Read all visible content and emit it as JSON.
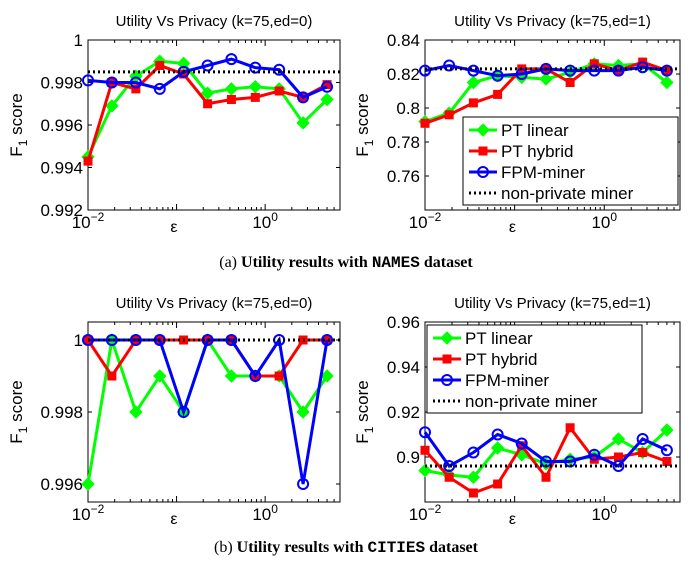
{
  "captions": {
    "a_prefix": "(a)",
    "a_text": "Utility results with",
    "a_dataset": "NAMES",
    "a_suffix": "dataset",
    "b_prefix": "(b)",
    "b_text": "Utility results with",
    "b_dataset": "CITIES",
    "b_suffix": "dataset"
  },
  "legend_entries": [
    {
      "name": "PT linear",
      "color": "#00ff00",
      "marker": "diamond",
      "line": "solid"
    },
    {
      "name": "PT hybrid",
      "color": "#ff0000",
      "marker": "square",
      "line": "solid"
    },
    {
      "name": "FPM-miner",
      "color": "#0000ff",
      "marker": "circle",
      "line": "solid"
    },
    {
      "name": "non-private miner",
      "color": "#000000",
      "marker": "none",
      "line": "dotted"
    }
  ],
  "chart_data": [
    {
      "type": "line",
      "title": "Utility Vs Privacy (k=75,ed=0)",
      "xlabel": "ε",
      "ylabel_main": "F",
      "ylabel_sub": "1",
      "ylabel_rest": " score",
      "xscale": "log",
      "xlim": [
        0.01,
        7
      ],
      "ylim": [
        0.992,
        1
      ],
      "yticks": [
        0.992,
        0.994,
        0.996,
        0.998,
        1
      ],
      "ytick_labels": [
        "0.992",
        "0.994",
        "0.996",
        "0.998",
        "1"
      ],
      "xticks": [
        0.01,
        1
      ],
      "xtick_base": "10",
      "xtick_exps": [
        "−2",
        "0"
      ],
      "legend": "none",
      "x": [
        0.01,
        0.0186,
        0.0347,
        0.0646,
        0.12,
        0.224,
        0.416,
        0.774,
        1.44,
        2.68,
        5
      ],
      "series": [
        {
          "name": "PT linear",
          "values": [
            0.9945,
            0.9969,
            0.9983,
            0.999,
            0.9989,
            0.9975,
            0.9977,
            0.9978,
            0.9977,
            0.9961,
            0.9972
          ]
        },
        {
          "name": "PT hybrid",
          "values": [
            0.9943,
            0.998,
            0.9977,
            0.9988,
            0.9984,
            0.997,
            0.9972,
            0.9973,
            0.9976,
            0.9973,
            0.9979
          ]
        },
        {
          "name": "FPM-miner",
          "values": [
            0.9981,
            0.998,
            0.998,
            0.9977,
            0.9985,
            0.9988,
            0.9991,
            0.9987,
            0.9986,
            0.9973,
            0.9978
          ]
        },
        {
          "name": "non-private miner",
          "constant": 0.9985
        }
      ]
    },
    {
      "type": "line",
      "title": "Utility Vs Privacy (k=75,ed=1)",
      "xlabel": "ε",
      "ylabel_main": "F",
      "ylabel_sub": "1",
      "ylabel_rest": " score",
      "xscale": "log",
      "xlim": [
        0.01,
        7
      ],
      "ylim": [
        0.74,
        0.84
      ],
      "yticks": [
        0.74,
        0.76,
        0.78,
        0.8,
        0.82,
        0.84
      ],
      "ytick_labels": [
        "",
        "0.76",
        "0.78",
        "0.8",
        "0.82",
        "0.84"
      ],
      "xticks": [
        0.01,
        1
      ],
      "xtick_base": "10",
      "xtick_exps": [
        "−2",
        "0"
      ],
      "legend": "bottom-right",
      "x": [
        0.01,
        0.0186,
        0.0347,
        0.0646,
        0.12,
        0.224,
        0.416,
        0.774,
        1.44,
        2.68,
        5
      ],
      "series": [
        {
          "name": "PT linear",
          "values": [
            0.792,
            0.797,
            0.815,
            0.819,
            0.818,
            0.817,
            0.821,
            0.826,
            0.825,
            0.826,
            0.815
          ]
        },
        {
          "name": "PT hybrid",
          "values": [
            0.791,
            0.796,
            0.803,
            0.808,
            0.823,
            0.823,
            0.815,
            0.826,
            0.822,
            0.827,
            0.822
          ]
        },
        {
          "name": "FPM-miner",
          "values": [
            0.822,
            0.825,
            0.822,
            0.819,
            0.82,
            0.823,
            0.822,
            0.822,
            0.822,
            0.824,
            0.822
          ]
        },
        {
          "name": "non-private miner",
          "constant": 0.823
        }
      ]
    },
    {
      "type": "line",
      "title": "Utility Vs Privacy (k=75,ed=0)",
      "xlabel": "ε",
      "ylabel_main": "F",
      "ylabel_sub": "1",
      "ylabel_rest": " score",
      "xscale": "log",
      "xlim": [
        0.01,
        7
      ],
      "ylim": [
        0.9955,
        1.0005
      ],
      "yticks": [
        0.996,
        0.998,
        1
      ],
      "ytick_labels": [
        "0.996",
        "0.998",
        "1"
      ],
      "xticks": [
        0.01,
        1
      ],
      "xtick_base": "10",
      "xtick_exps": [
        "−2",
        "0"
      ],
      "legend": "none",
      "x": [
        0.01,
        0.0186,
        0.0347,
        0.0646,
        0.12,
        0.224,
        0.416,
        0.774,
        1.44,
        2.68,
        5
      ],
      "series": [
        {
          "name": "PT linear",
          "values": [
            0.996,
            1.0,
            0.998,
            0.999,
            0.998,
            1.0,
            0.999,
            0.999,
            0.999,
            0.998,
            0.999
          ]
        },
        {
          "name": "PT hybrid",
          "values": [
            1.0,
            0.999,
            1.0,
            1.0,
            1.0,
            1.0,
            1.0,
            0.999,
            0.999,
            1.0,
            1.0
          ]
        },
        {
          "name": "FPM-miner",
          "values": [
            1.0,
            1.0,
            1.0,
            1.0,
            0.998,
            1.0,
            1.0,
            0.999,
            1.0,
            0.996,
            1.0
          ]
        },
        {
          "name": "non-private miner",
          "constant": 1.0
        }
      ]
    },
    {
      "type": "line",
      "title": "Utility Vs Privacy (k=75,ed=1)",
      "xlabel": "ε",
      "ylabel_main": "F",
      "ylabel_sub": "1",
      "ylabel_rest": " score",
      "xscale": "log",
      "xlim": [
        0.01,
        7
      ],
      "ylim": [
        0.88,
        0.96
      ],
      "yticks": [
        0.88,
        0.9,
        0.92,
        0.94,
        0.96
      ],
      "ytick_labels": [
        "",
        "0.9",
        "0.92",
        "0.94",
        "0.96"
      ],
      "xticks": [
        0.01,
        1
      ],
      "xtick_base": "10",
      "xtick_exps": [
        "−2",
        "0"
      ],
      "legend": "top-left",
      "x": [
        0.01,
        0.0186,
        0.0347,
        0.0646,
        0.12,
        0.224,
        0.416,
        0.774,
        1.44,
        2.68,
        5
      ],
      "series": [
        {
          "name": "PT linear",
          "values": [
            0.894,
            0.892,
            0.891,
            0.904,
            0.901,
            0.897,
            0.899,
            0.9,
            0.908,
            0.902,
            0.912
          ]
        },
        {
          "name": "PT hybrid",
          "values": [
            0.903,
            0.891,
            0.884,
            0.888,
            0.905,
            0.891,
            0.913,
            0.899,
            0.9,
            0.902,
            0.898
          ]
        },
        {
          "name": "FPM-miner",
          "values": [
            0.911,
            0.896,
            0.902,
            0.91,
            0.906,
            0.898,
            0.898,
            0.901,
            0.896,
            0.908,
            0.903
          ]
        },
        {
          "name": "non-private miner",
          "constant": 0.896
        }
      ]
    }
  ]
}
